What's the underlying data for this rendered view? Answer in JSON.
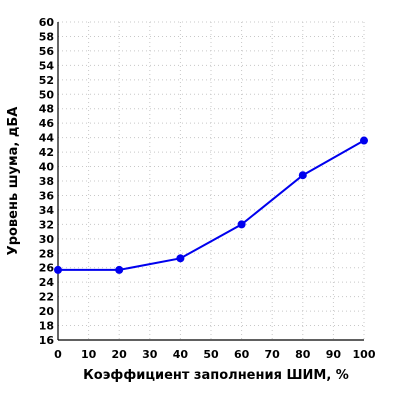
{
  "chart_data": {
    "type": "line",
    "xlabel": "Коэффициент заполнения ШИМ, %",
    "ylabel": "Уровень шума, дБА",
    "xlim": [
      0,
      100
    ],
    "ylim": [
      16,
      60
    ],
    "xticks": [
      0,
      10,
      20,
      30,
      40,
      50,
      60,
      70,
      80,
      90,
      100
    ],
    "yticks": [
      16,
      18,
      20,
      22,
      24,
      26,
      28,
      30,
      32,
      34,
      36,
      38,
      40,
      42,
      44,
      46,
      48,
      50,
      52,
      54,
      56,
      58,
      60
    ],
    "grid": true,
    "series": [
      {
        "color": "#0000ee",
        "x": [
          0,
          20,
          40,
          60,
          80,
          100
        ],
        "y": [
          25.7,
          25.7,
          27.3,
          32.0,
          38.8,
          43.6
        ]
      }
    ]
  }
}
